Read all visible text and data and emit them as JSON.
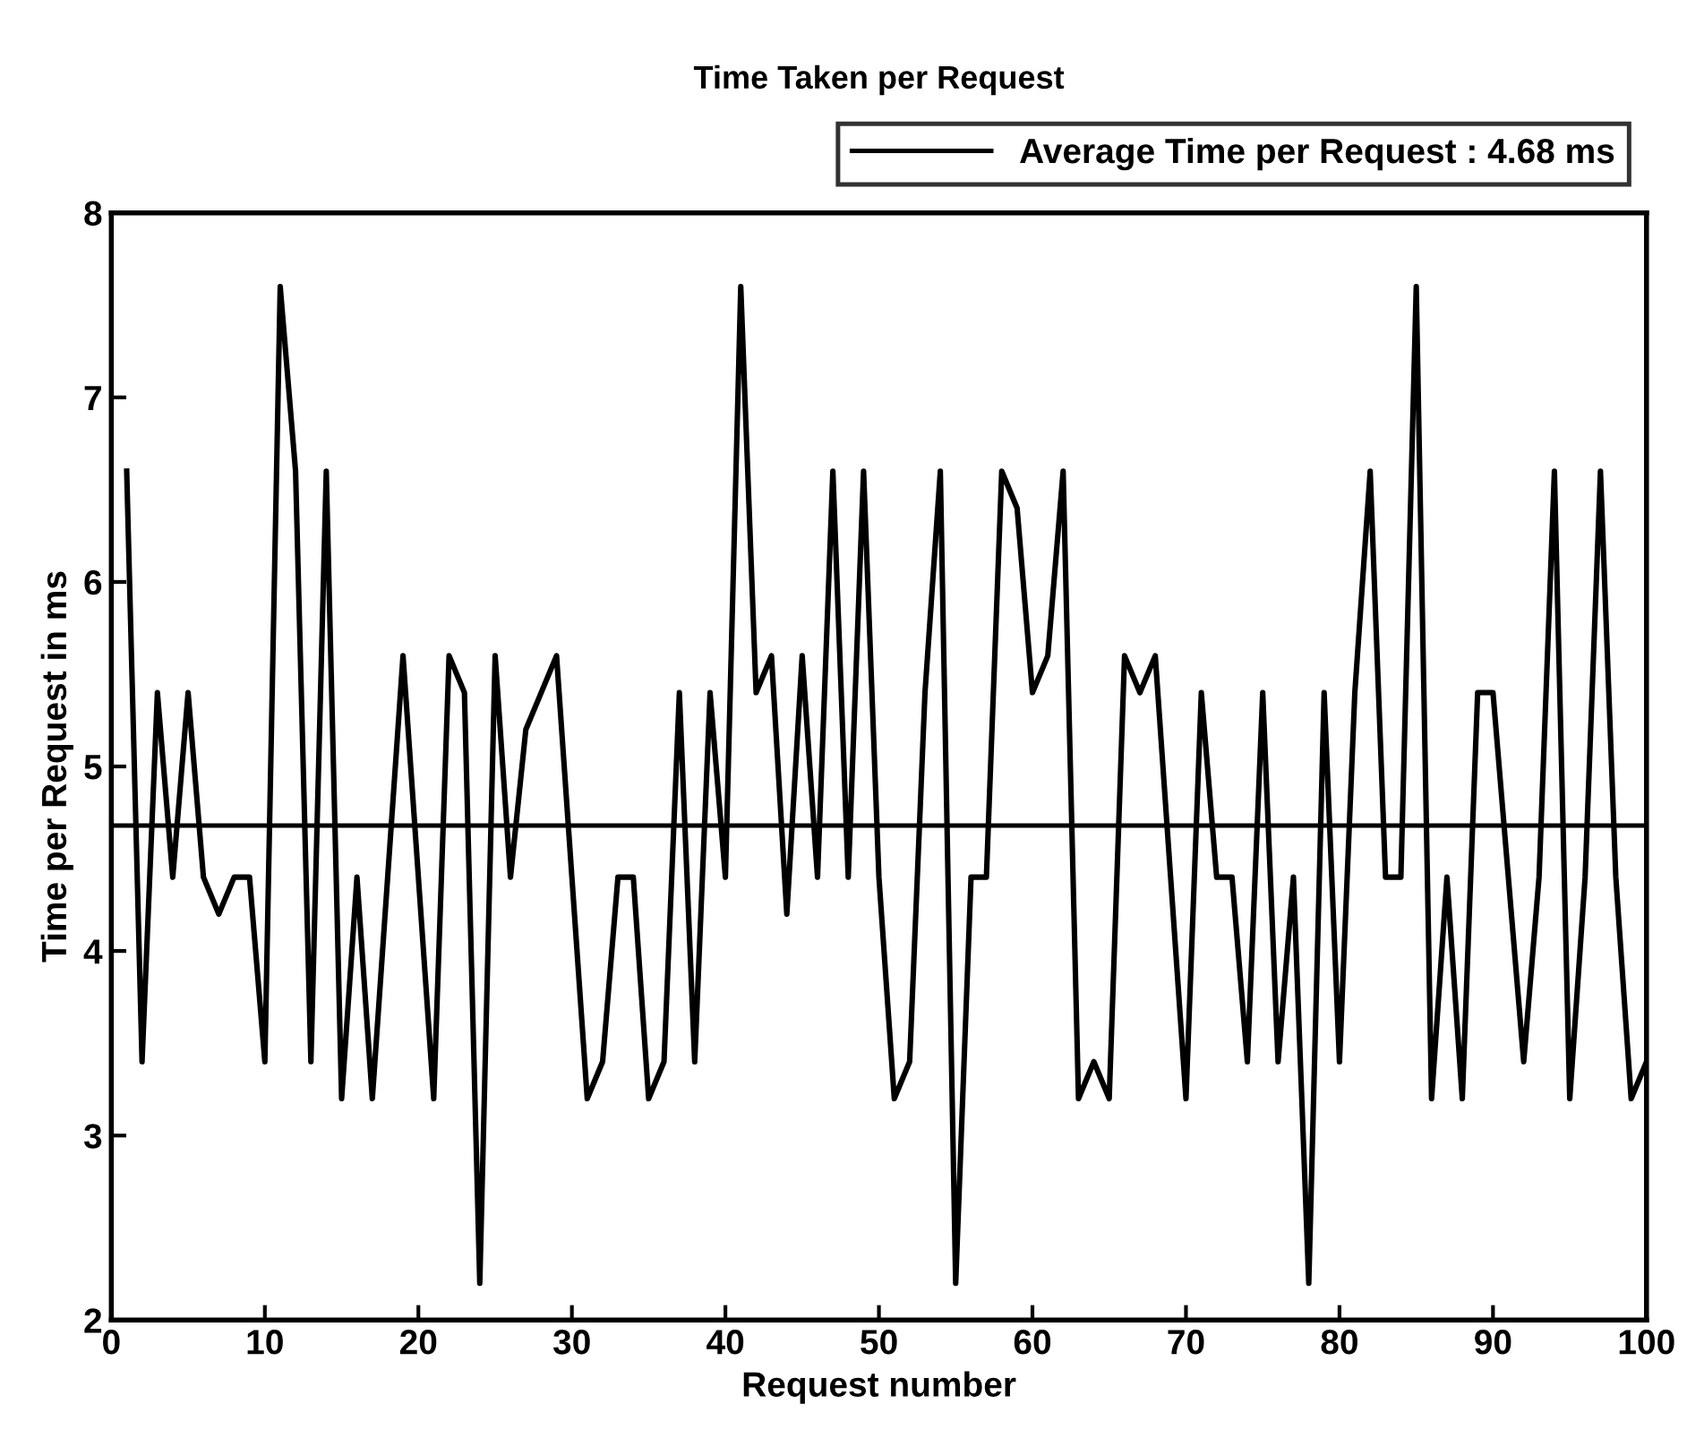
{
  "chart_data": {
    "type": "line",
    "title": "Time Taken per Request",
    "xlabel": "Request number",
    "ylabel": "Time per Request in ms",
    "x": [
      1,
      2,
      3,
      4,
      5,
      6,
      7,
      8,
      9,
      10,
      11,
      12,
      13,
      14,
      15,
      16,
      17,
      18,
      19,
      20,
      21,
      22,
      23,
      24,
      25,
      26,
      27,
      28,
      29,
      30,
      31,
      32,
      33,
      34,
      35,
      36,
      37,
      38,
      39,
      40,
      41,
      42,
      43,
      44,
      45,
      46,
      47,
      48,
      49,
      50,
      51,
      52,
      53,
      54,
      55,
      56,
      57,
      58,
      59,
      60,
      61,
      62,
      63,
      64,
      65,
      66,
      67,
      68,
      69,
      70,
      71,
      72,
      73,
      74,
      75,
      76,
      77,
      78,
      79,
      80,
      81,
      82,
      83,
      84,
      85,
      86,
      87,
      88,
      89,
      90,
      91,
      92,
      93,
      94,
      95,
      96,
      97,
      98,
      99,
      100
    ],
    "series": [
      {
        "color": "#000000",
        "values": [
          6.6,
          3.4,
          5.4,
          4.4,
          5.4,
          4.4,
          4.2,
          4.4,
          4.4,
          3.4,
          7.6,
          6.6,
          3.4,
          6.6,
          3.2,
          4.4,
          3.2,
          4.4,
          5.6,
          4.4,
          3.2,
          5.6,
          5.4,
          2.2,
          5.6,
          4.4,
          5.2,
          5.4,
          5.6,
          4.4,
          3.2,
          3.4,
          4.4,
          4.4,
          3.2,
          3.4,
          5.4,
          3.4,
          5.4,
          4.4,
          7.6,
          5.4,
          5.6,
          4.2,
          5.6,
          4.4,
          6.6,
          4.4,
          6.6,
          4.4,
          3.2,
          3.4,
          5.4,
          6.6,
          2.2,
          4.4,
          4.4,
          6.6,
          6.4,
          5.4,
          5.6,
          6.6,
          3.2,
          3.4,
          3.2,
          5.6,
          5.4,
          5.6,
          4.4,
          3.2,
          5.4,
          4.4,
          4.4,
          3.4,
          5.4,
          3.4,
          4.4,
          2.2,
          5.4,
          3.4,
          5.4,
          6.6,
          4.4,
          4.4,
          7.6,
          3.2,
          4.4,
          3.2,
          5.4,
          5.4,
          4.4,
          3.4,
          4.4,
          6.6,
          3.2,
          4.4,
          6.6,
          4.4,
          3.2,
          3.4
        ]
      }
    ],
    "ref_lines": [
      {
        "axis": "y",
        "value": 4.68,
        "label": "Average Time per Request : 4.68 ms",
        "color": "#000000"
      }
    ],
    "xlim": [
      0,
      100
    ],
    "ylim": [
      2,
      8
    ],
    "xticks": [
      0,
      10,
      20,
      30,
      40,
      50,
      60,
      70,
      80,
      90,
      100
    ],
    "yticks": [
      2,
      3,
      4,
      5,
      6,
      7,
      8
    ],
    "legend": "top",
    "line_style": "solid"
  }
}
